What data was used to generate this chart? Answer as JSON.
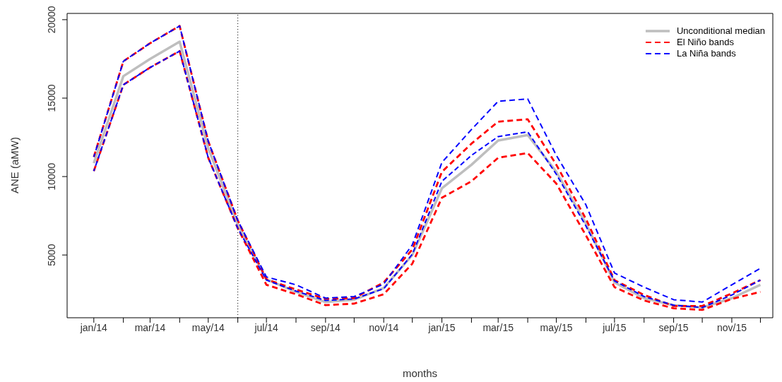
{
  "chart_data": {
    "type": "line",
    "xlabel": "months",
    "ylabel": "ANE (aMW)",
    "x": [
      "2014-01",
      "2014-02",
      "2014-03",
      "2014-04",
      "2014-05",
      "2014-06",
      "2014-07",
      "2014-08",
      "2014-09",
      "2014-10",
      "2014-11",
      "2014-12",
      "2015-01",
      "2015-02",
      "2015-03",
      "2015-04",
      "2015-05",
      "2015-06",
      "2015-07",
      "2015-08",
      "2015-09",
      "2015-10",
      "2015-11",
      "2015-12"
    ],
    "xlim": [
      "2013-12-04",
      "2015-12-14"
    ],
    "xticks": [
      {
        "value": "2014-01",
        "label": "jan/14"
      },
      {
        "value": "2014-02",
        "label": null
      },
      {
        "value": "2014-03",
        "label": "mar/14"
      },
      {
        "value": "2014-04",
        "label": null
      },
      {
        "value": "2014-05",
        "label": "may/14"
      },
      {
        "value": "2014-06",
        "label": null
      },
      {
        "value": "2014-07",
        "label": "jul/14"
      },
      {
        "value": "2014-08",
        "label": null
      },
      {
        "value": "2014-09",
        "label": "sep/14"
      },
      {
        "value": "2014-10",
        "label": null
      },
      {
        "value": "2014-11",
        "label": "nov/14"
      },
      {
        "value": "2014-12",
        "label": null
      },
      {
        "value": "2015-01",
        "label": "jan/15"
      },
      {
        "value": "2015-02",
        "label": null
      },
      {
        "value": "2015-03",
        "label": "mar/15"
      },
      {
        "value": "2015-04",
        "label": null
      },
      {
        "value": "2015-05",
        "label": "may/15"
      },
      {
        "value": "2015-06",
        "label": null
      },
      {
        "value": "2015-07",
        "label": "jul/15"
      },
      {
        "value": "2015-08",
        "label": null
      },
      {
        "value": "2015-09",
        "label": "sep/15"
      },
      {
        "value": "2015-10",
        "label": null
      },
      {
        "value": "2015-11",
        "label": "nov/15"
      },
      {
        "value": "2015-12",
        "label": null
      }
    ],
    "ylim": [
      1000,
      20400
    ],
    "yticks": [
      5000,
      10000,
      15000,
      20000
    ],
    "grid": false,
    "legend": "top right",
    "marker": "none",
    "ref_lines": [
      {
        "axis": "x",
        "value": "2014-06",
        "color": "#000000",
        "line_style": "dotted"
      }
    ],
    "series": [
      {
        "name": "Unconditional median",
        "color": "#bebebe",
        "line_style": "solid",
        "values": [
          10850,
          16400,
          17500,
          18600,
          11800,
          6950,
          3450,
          2650,
          2000,
          2150,
          2900,
          5000,
          9250,
          10750,
          12300,
          12650,
          10300,
          7000,
          3250,
          2250,
          1800,
          1650,
          2250,
          3100
        ]
      },
      {
        "name": "El Niño bands",
        "color": "#ff0000",
        "line_style": "dashed",
        "values": [
          11250,
          17350,
          18500,
          19600,
          12250,
          7200,
          3450,
          2800,
          2200,
          2250,
          3250,
          5350,
          10300,
          12100,
          13500,
          13650,
          10750,
          7300,
          3400,
          2450,
          1750,
          1750,
          2550,
          3400
        ]
      },
      {
        "color": "#ff0000",
        "line_style": "dashed",
        "values": [
          10350,
          15850,
          16950,
          18000,
          11200,
          6700,
          3100,
          2500,
          1800,
          1900,
          2500,
          4450,
          8650,
          9700,
          11200,
          11500,
          9550,
          6250,
          2950,
          2100,
          1600,
          1500,
          2200,
          2650
        ]
      },
      {
        "name": "La Niña bands",
        "color": "#0000ff",
        "line_style": "dashed",
        "values": [
          11250,
          17350,
          18500,
          19600,
          12250,
          7200,
          3600,
          3100,
          2250,
          2350,
          3150,
          5650,
          10900,
          13000,
          14800,
          14950,
          11350,
          8200,
          3850,
          2950,
          2150,
          2000,
          3100,
          4150
        ]
      },
      {
        "color": "#0000ff",
        "line_style": "dashed",
        "values": [
          10350,
          15850,
          16950,
          18000,
          11200,
          6700,
          3400,
          2700,
          2100,
          2200,
          2850,
          5050,
          9700,
          11350,
          12550,
          12850,
          10150,
          6850,
          3350,
          2350,
          1800,
          1650,
          2450,
          3400
        ]
      }
    ]
  }
}
